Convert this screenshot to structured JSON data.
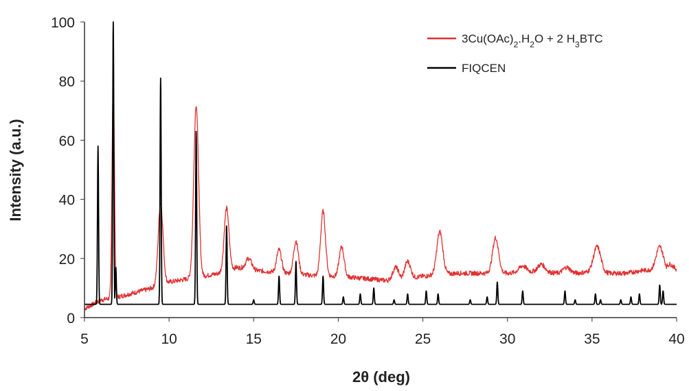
{
  "chart_data": {
    "type": "line",
    "title": "",
    "xlabel": "2θ (deg)",
    "ylabel": "Intensity (a.u.)",
    "xlim": [
      5,
      40
    ],
    "ylim": [
      0,
      100
    ],
    "xticks": [
      "5",
      "10",
      "15",
      "20",
      "25",
      "30",
      "35",
      "40"
    ],
    "yticks": [
      "0",
      "20",
      "40",
      "60",
      "80",
      "100"
    ],
    "grid": false,
    "legend_position": "top-right",
    "series": [
      {
        "name": "3Cu(OAc)2.H2O + 2 H3BTC",
        "name_parts": [
          "3Cu(OAc)",
          "2",
          ".H",
          "2",
          "O + 2 H",
          "3",
          "BTC"
        ],
        "color": "#e03030",
        "baseline": [
          [
            5,
            3
          ],
          [
            6,
            6
          ],
          [
            7,
            7
          ],
          [
            8,
            8.5
          ],
          [
            9,
            10
          ],
          [
            10,
            12
          ],
          [
            11,
            13
          ],
          [
            12,
            14
          ],
          [
            13,
            15
          ],
          [
            14,
            17
          ],
          [
            15,
            16
          ],
          [
            16,
            15.5
          ],
          [
            17,
            15
          ],
          [
            18,
            14.5
          ],
          [
            19,
            14
          ],
          [
            20,
            14
          ],
          [
            21,
            13.5
          ],
          [
            22,
            13
          ],
          [
            23,
            12.5
          ],
          [
            24,
            13
          ],
          [
            25,
            14
          ],
          [
            26,
            14.5
          ],
          [
            27,
            15
          ],
          [
            28,
            15
          ],
          [
            29,
            15
          ],
          [
            30,
            15
          ],
          [
            31,
            15.5
          ],
          [
            32,
            15.5
          ],
          [
            33,
            15
          ],
          [
            34,
            15
          ],
          [
            35,
            15.5
          ],
          [
            36,
            15
          ],
          [
            37,
            15
          ],
          [
            38,
            16
          ],
          [
            39,
            16
          ],
          [
            40,
            16
          ]
        ],
        "peaks": [
          {
            "x": 6.7,
            "y": 80,
            "w": 0.1
          },
          {
            "x": 9.5,
            "y": 39,
            "w": 0.2
          },
          {
            "x": 11.6,
            "y": 72,
            "w": 0.2
          },
          {
            "x": 13.4,
            "y": 37,
            "w": 0.2
          },
          {
            "x": 14.7,
            "y": 20,
            "w": 0.25
          },
          {
            "x": 16.5,
            "y": 23,
            "w": 0.2
          },
          {
            "x": 17.5,
            "y": 26,
            "w": 0.2
          },
          {
            "x": 19.1,
            "y": 36,
            "w": 0.2
          },
          {
            "x": 20.2,
            "y": 24,
            "w": 0.2
          },
          {
            "x": 23.4,
            "y": 17,
            "w": 0.25
          },
          {
            "x": 24.1,
            "y": 19,
            "w": 0.25
          },
          {
            "x": 26.0,
            "y": 29,
            "w": 0.25
          },
          {
            "x": 29.3,
            "y": 27,
            "w": 0.25
          },
          {
            "x": 30.9,
            "y": 17.5,
            "w": 0.3
          },
          {
            "x": 32.0,
            "y": 18,
            "w": 0.3
          },
          {
            "x": 33.5,
            "y": 17,
            "w": 0.3
          },
          {
            "x": 35.3,
            "y": 24,
            "w": 0.3
          },
          {
            "x": 39.0,
            "y": 24,
            "w": 0.3
          },
          {
            "x": 39.6,
            "y": 18,
            "w": 0.3
          }
        ]
      },
      {
        "name": "FIQCEN",
        "color": "#000000",
        "baseline": [
          [
            5,
            4.5
          ],
          [
            40,
            4.5
          ]
        ],
        "peaks": [
          {
            "x": 5.8,
            "y": 58
          },
          {
            "x": 6.7,
            "y": 100
          },
          {
            "x": 6.85,
            "y": 17
          },
          {
            "x": 9.5,
            "y": 81
          },
          {
            "x": 11.6,
            "y": 63
          },
          {
            "x": 13.4,
            "y": 31
          },
          {
            "x": 15.0,
            "y": 6
          },
          {
            "x": 16.5,
            "y": 14
          },
          {
            "x": 17.5,
            "y": 19
          },
          {
            "x": 19.1,
            "y": 14
          },
          {
            "x": 20.3,
            "y": 7
          },
          {
            "x": 21.3,
            "y": 8
          },
          {
            "x": 22.1,
            "y": 10
          },
          {
            "x": 23.3,
            "y": 6
          },
          {
            "x": 24.1,
            "y": 8
          },
          {
            "x": 25.2,
            "y": 9
          },
          {
            "x": 25.9,
            "y": 8
          },
          {
            "x": 27.8,
            "y": 6
          },
          {
            "x": 28.8,
            "y": 7
          },
          {
            "x": 29.4,
            "y": 12
          },
          {
            "x": 30.9,
            "y": 9
          },
          {
            "x": 33.4,
            "y": 9
          },
          {
            "x": 34.0,
            "y": 6
          },
          {
            "x": 35.2,
            "y": 8
          },
          {
            "x": 35.5,
            "y": 6
          },
          {
            "x": 36.7,
            "y": 6
          },
          {
            "x": 37.3,
            "y": 7
          },
          {
            "x": 37.8,
            "y": 8
          },
          {
            "x": 39.0,
            "y": 11
          },
          {
            "x": 39.2,
            "y": 9
          }
        ]
      }
    ]
  }
}
